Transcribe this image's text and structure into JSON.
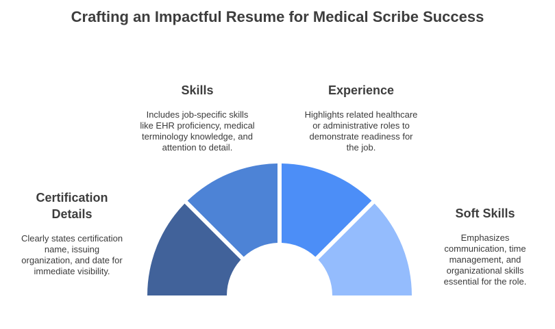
{
  "title": "Crafting an Impactful Resume for Medical Scribe Success",
  "colors": {
    "certification": "#41629a",
    "skills": "#4d83d6",
    "experience": "#4c8ef7",
    "soft_skills": "#94bcfd"
  },
  "segments": [
    {
      "heading": "Certification Details",
      "description": "Clearly states certification name, issuing organization, and date for immediate visibility."
    },
    {
      "heading": "Skills",
      "description": "Includes job-specific skills like EHR proficiency, medical terminology knowledge, and attention to detail."
    },
    {
      "heading": "Experience",
      "description": "Highlights related healthcare or administrative roles to demonstrate readiness for the job."
    },
    {
      "heading": "Soft Skills",
      "description": "Emphasizes communication, time management, and organizational skills essential for the role."
    }
  ]
}
